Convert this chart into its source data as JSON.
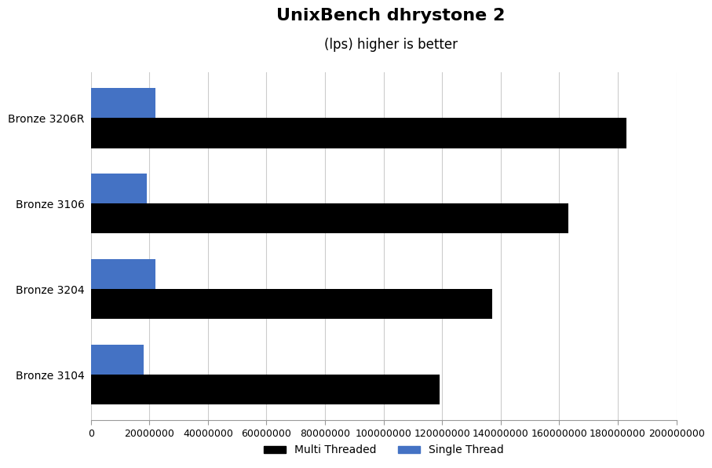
{
  "title": "UnixBench dhrystone 2",
  "subtitle": "(lps) higher is better",
  "categories": [
    "Bronze 3206R",
    "Bronze 3106",
    "Bronze 3204",
    "Bronze 3104"
  ],
  "multi_thread": [
    183000000,
    163000000,
    137000000,
    119000000
  ],
  "single_thread": [
    22000000,
    19000000,
    22000000,
    18000000
  ],
  "multi_color": "#000000",
  "single_color": "#4472c4",
  "background_color": "#ffffff",
  "xlim": [
    0,
    200000000
  ],
  "xticks": [
    0,
    20000000,
    40000000,
    60000000,
    80000000,
    100000000,
    120000000,
    140000000,
    160000000,
    180000000,
    200000000
  ],
  "xtick_labels": [
    "0",
    "20000000",
    "40000000",
    "60000000",
    "80000000",
    "100000000",
    "120000000",
    "140000000",
    "160000000",
    "180000000",
    "200000000"
  ],
  "title_fontsize": 16,
  "subtitle_fontsize": 12,
  "legend_labels": [
    "Multi Threaded",
    "Single Thread"
  ],
  "bar_height": 0.35
}
